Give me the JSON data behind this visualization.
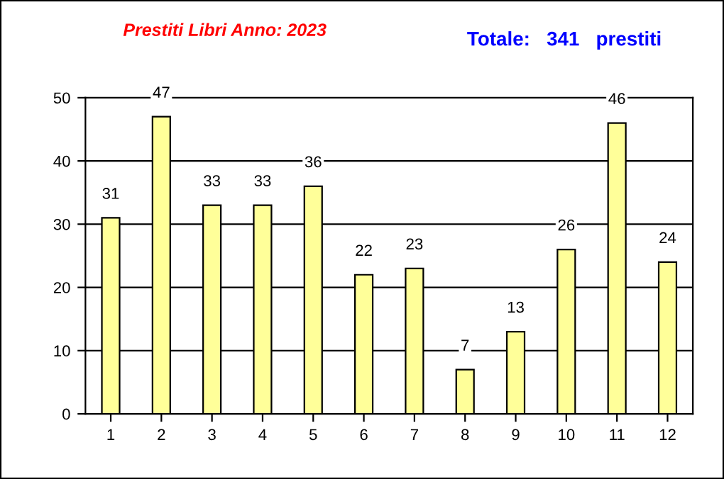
{
  "chart_data": {
    "type": "bar",
    "title": "Prestiti Libri Anno: 2023",
    "annotations": [
      "Totale:   341   prestiti"
    ],
    "categories": [
      "1",
      "2",
      "3",
      "4",
      "5",
      "6",
      "7",
      "8",
      "9",
      "10",
      "11",
      "12"
    ],
    "values": [
      31,
      47,
      33,
      33,
      36,
      22,
      23,
      7,
      13,
      26,
      46,
      24
    ],
    "color": "#ffff99",
    "ylim": [
      0,
      50
    ],
    "yticks": [
      0,
      10,
      20,
      30,
      40,
      50
    ],
    "grid": "y",
    "data_labels": true
  }
}
